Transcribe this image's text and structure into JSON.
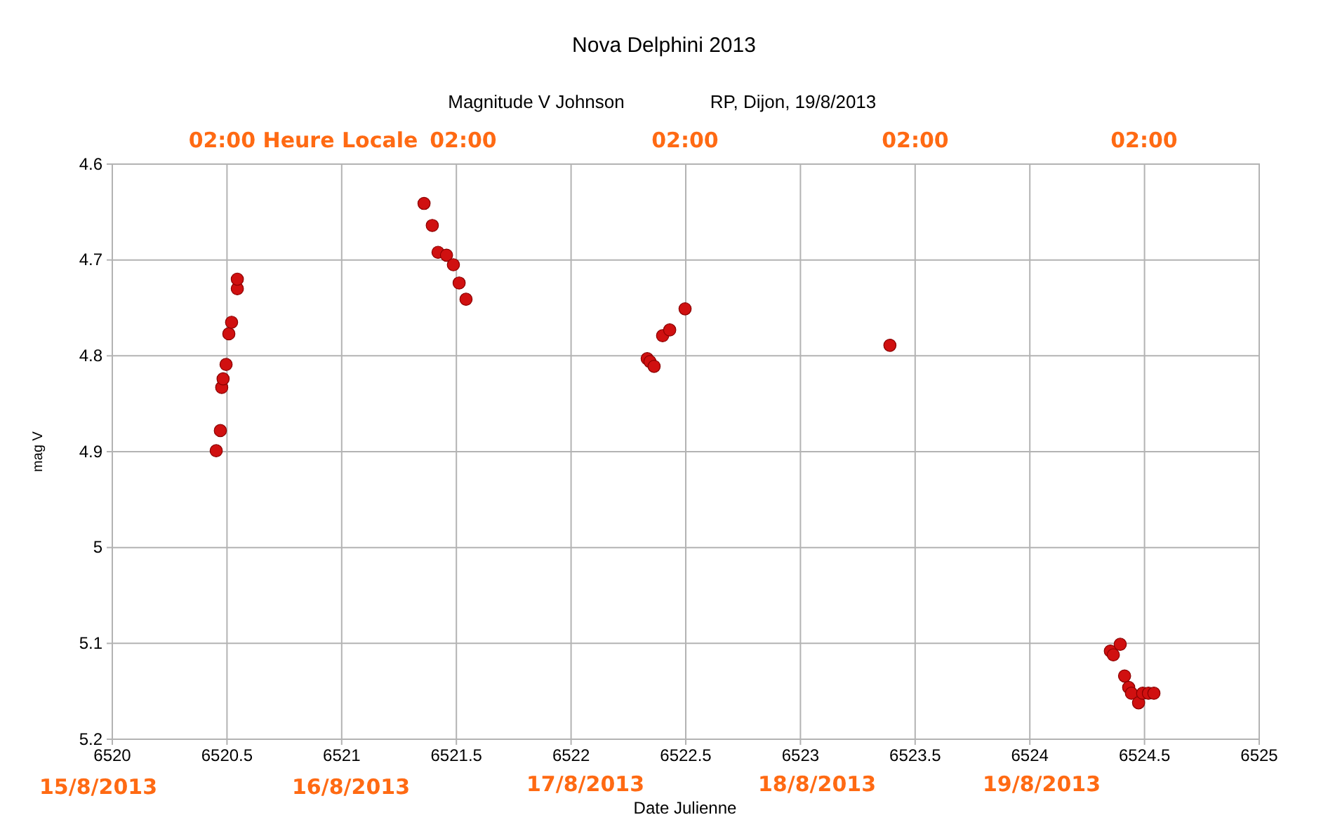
{
  "chart_data": {
    "type": "scatter",
    "title": "Nova Delphini 2013",
    "subtitle": "Magnitude V Johnson",
    "xlabel": "Date Julienne",
    "ylabel": "mag V",
    "annotations": [
      "RP, Dijon, 19/8/2013",
      "02:00 Heure Locale",
      "02:00",
      "02:00",
      "02:00",
      "02:00",
      "15/8/2013",
      "16/8/2013",
      "17/8/2013",
      "18/8/2013",
      "19/8/2013"
    ],
    "x": [
      6520.453,
      6520.471,
      6520.477,
      6520.483,
      6520.496,
      6520.508,
      6520.52,
      6520.545,
      6520.545,
      6521.359,
      6521.395,
      6521.42,
      6521.457,
      6521.487,
      6521.512,
      6521.542,
      6522.332,
      6522.344,
      6522.362,
      6522.399,
      6522.43,
      6522.497,
      6523.39,
      6524.351,
      6524.364,
      6524.394,
      6524.413,
      6524.431,
      6524.443,
      6524.474,
      6524.492,
      6524.517,
      6524.541
    ],
    "series": [
      {
        "color": "#d01010",
        "values": [
          4.899,
          4.878,
          4.833,
          4.824,
          4.809,
          4.777,
          4.765,
          4.73,
          4.72,
          4.641,
          4.664,
          4.692,
          4.695,
          4.705,
          4.724,
          4.741,
          4.803,
          4.806,
          4.811,
          4.779,
          4.773,
          4.751,
          4.789,
          5.108,
          5.112,
          5.101,
          5.134,
          5.146,
          5.152,
          5.162,
          5.152,
          5.152,
          5.152
        ]
      }
    ],
    "xlim": [
      6520,
      6525
    ],
    "xticks": [
      6520,
      6520.5,
      6521,
      6521.5,
      6522,
      6522.5,
      6523,
      6523.5,
      6524,
      6524.5,
      6525
    ],
    "ylim": [
      5.2,
      4.6
    ],
    "yticks": [
      4.6,
      4.7,
      4.8,
      4.9,
      5,
      5.1,
      5.2
    ],
    "grid": true,
    "marker": "circle"
  }
}
